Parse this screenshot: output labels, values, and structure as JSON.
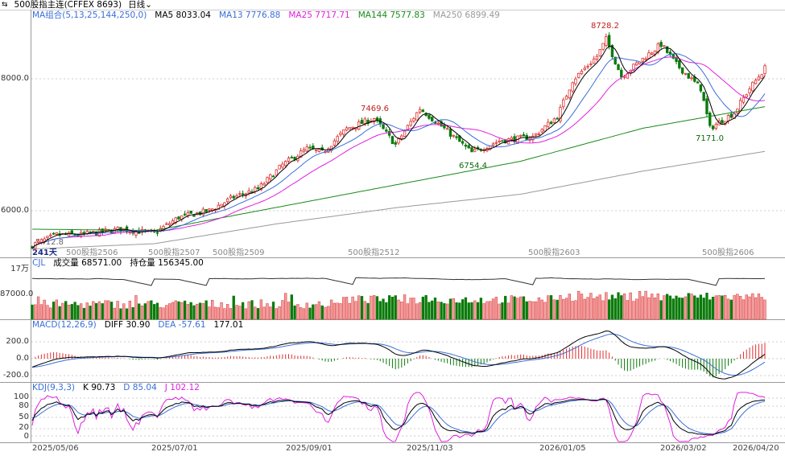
{
  "window": {
    "icon": "link-icon",
    "title": "500股指主连(CFFEX  8693)",
    "period": "日线",
    "period_icon": "chevron-down-icon"
  },
  "main_legend": {
    "indicator": "MA组合(5,13,25,144,250,0)",
    "ma5": "MA5 8033.04",
    "ma13": "MA13 7776.88",
    "ma25": "MA25 7717.71",
    "ma144": "MA144 7577.83",
    "ma250": "MA250 6899.49"
  },
  "cjl_legend": {
    "indicator": "CJL",
    "volume": "成交量 68571.00",
    "open_interest": "持仓量 156345.00"
  },
  "macd_legend": {
    "indicator": "MACD(12,26,9)",
    "diff": "DIFF 30.90",
    "dea": "DEA -57.61",
    "macd": "177.01"
  },
  "kdj_legend": {
    "indicator": "KDJ(9,3,3)",
    "k": "K 90.73",
    "d": "D 85.04",
    "j": "J 102.12"
  },
  "axes": {
    "price": [
      "8000.0",
      "6000.0"
    ],
    "cjl": [
      "17万",
      "87000.0"
    ],
    "macd": [
      "200.0",
      "0.0",
      "-200.0"
    ],
    "kdj": [
      "100",
      "80",
      "50",
      "20",
      "0"
    ]
  },
  "dates": [
    "2025/05/06",
    "2025/07/01",
    "2025/09/01",
    "2025/11/03",
    "2026/01/05",
    "2026/03/02",
    "2026/04/20"
  ],
  "contract_rolls": [
    "500股指2506",
    "500股指2507",
    "500股指2509",
    "500股指2512",
    "500股指2603",
    "500股指2606"
  ],
  "bar_count_label": "241天",
  "annotations": {
    "low_start": "5412.8",
    "high1": "7469.6",
    "low1": "6754.4",
    "high2": "8728.2",
    "low2": "7171.0"
  },
  "colors": {
    "up": "#e03030",
    "up_fill": "#f0a0a0",
    "down": "#0a7a0a",
    "ma5": "#000000",
    "ma13": "#3a6fd8",
    "ma25": "#e020e0",
    "ma144": "#1a8a1a",
    "ma250": "#999999",
    "legend_label": "#3a6fd8"
  },
  "chart_data": {
    "type": "candlestick",
    "bars": 241,
    "close_keypoints": [
      [
        0,
        5476
      ],
      [
        8,
        5634
      ],
      [
        16,
        5634
      ],
      [
        29,
        5720
      ],
      [
        40,
        5660
      ],
      [
        48,
        5900
      ],
      [
        58,
        6000
      ],
      [
        66,
        6207
      ],
      [
        74,
        6330
      ],
      [
        82,
        6695
      ],
      [
        90,
        6940
      ],
      [
        95,
        6880
      ],
      [
        103,
        7244
      ],
      [
        112,
        7400
      ],
      [
        119,
        7000
      ],
      [
        127,
        7550
      ],
      [
        135,
        7244
      ],
      [
        144,
        6880
      ],
      [
        153,
        7060
      ],
      [
        164,
        7120
      ],
      [
        172,
        7427
      ],
      [
        177,
        7975
      ],
      [
        185,
        8341
      ],
      [
        188,
        8600
      ],
      [
        193,
        8036
      ],
      [
        201,
        8341
      ],
      [
        206,
        8524
      ],
      [
        211,
        8220
      ],
      [
        219,
        7853
      ],
      [
        222,
        7250
      ],
      [
        230,
        7488
      ],
      [
        235,
        7853
      ],
      [
        240,
        8160
      ]
    ],
    "ma144_keypoints": [
      [
        0,
        5720
      ],
      [
        40,
        5700
      ],
      [
        80,
        6050
      ],
      [
        120,
        6400
      ],
      [
        160,
        6750
      ],
      [
        200,
        7250
      ],
      [
        240,
        7577.83
      ]
    ],
    "ma250_keypoints": [
      [
        0,
        5420
      ],
      [
        40,
        5500
      ],
      [
        80,
        5800
      ],
      [
        120,
        6050
      ],
      [
        160,
        6250
      ],
      [
        200,
        6600
      ],
      [
        240,
        6899.49
      ]
    ],
    "price_range": [
      5412.8,
      8728.2
    ]
  }
}
